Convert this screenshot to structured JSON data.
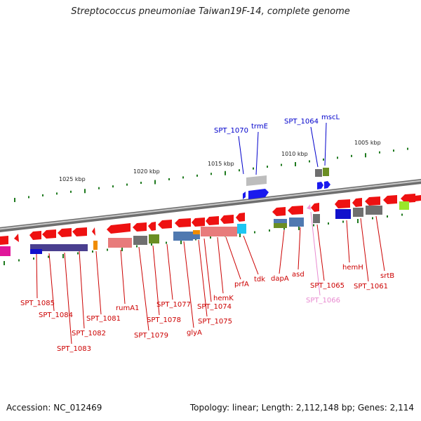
{
  "title": "Streptococcus pneumoniae Taiwan19F-14, complete genome",
  "footer": {
    "accession": "Accession: NC_012469",
    "topology": "Topology: linear; Length: 2,112,148 bp; Genes: 2,114"
  },
  "colors": {
    "forward_gene": "#ee0000",
    "reverse_gene": "#1a1aee",
    "label_red": "#cc0000",
    "label_blue": "#0000cc",
    "label_pink": "#e88ad0",
    "backbone": "#8a8a8a",
    "tick": "#1f7a1f"
  },
  "scale_labels": [
    "1025 kbp",
    "1020 kbp",
    "1015 kbp",
    "1010 kbp",
    "1005 kbp"
  ],
  "top_labels": [
    {
      "text": "SPT_1070",
      "color": "blue"
    },
    {
      "text": "trmE",
      "color": "blue"
    },
    {
      "text": "SPT_1064",
      "color": "blue"
    },
    {
      "text": "mscL",
      "color": "blue"
    }
  ],
  "bottom_labels": [
    {
      "text": "SPT_1085",
      "color": "red"
    },
    {
      "text": "SPT_1084",
      "color": "red"
    },
    {
      "text": "SPT_1083",
      "color": "red"
    },
    {
      "text": "SPT_1082",
      "color": "red"
    },
    {
      "text": "SPT_1081",
      "color": "red"
    },
    {
      "text": "rumA1",
      "color": "red"
    },
    {
      "text": "SPT_1079",
      "color": "red"
    },
    {
      "text": "SPT_1078",
      "color": "red"
    },
    {
      "text": "SPT_1077",
      "color": "red"
    },
    {
      "text": "glyA",
      "color": "red"
    },
    {
      "text": "SPT_1075",
      "color": "red"
    },
    {
      "text": "SPT_1074",
      "color": "red"
    },
    {
      "text": "hemK",
      "color": "red"
    },
    {
      "text": "prfA",
      "color": "red"
    },
    {
      "text": "tdk",
      "color": "red"
    },
    {
      "text": "dapA",
      "color": "red"
    },
    {
      "text": "asd",
      "color": "red"
    },
    {
      "text": "SPT_1065",
      "color": "red"
    },
    {
      "text": "SPT_1066",
      "color": "pink"
    },
    {
      "text": "hemH",
      "color": "red"
    },
    {
      "text": "SPT_1061",
      "color": "red"
    },
    {
      "text": "srtB",
      "color": "red"
    }
  ]
}
